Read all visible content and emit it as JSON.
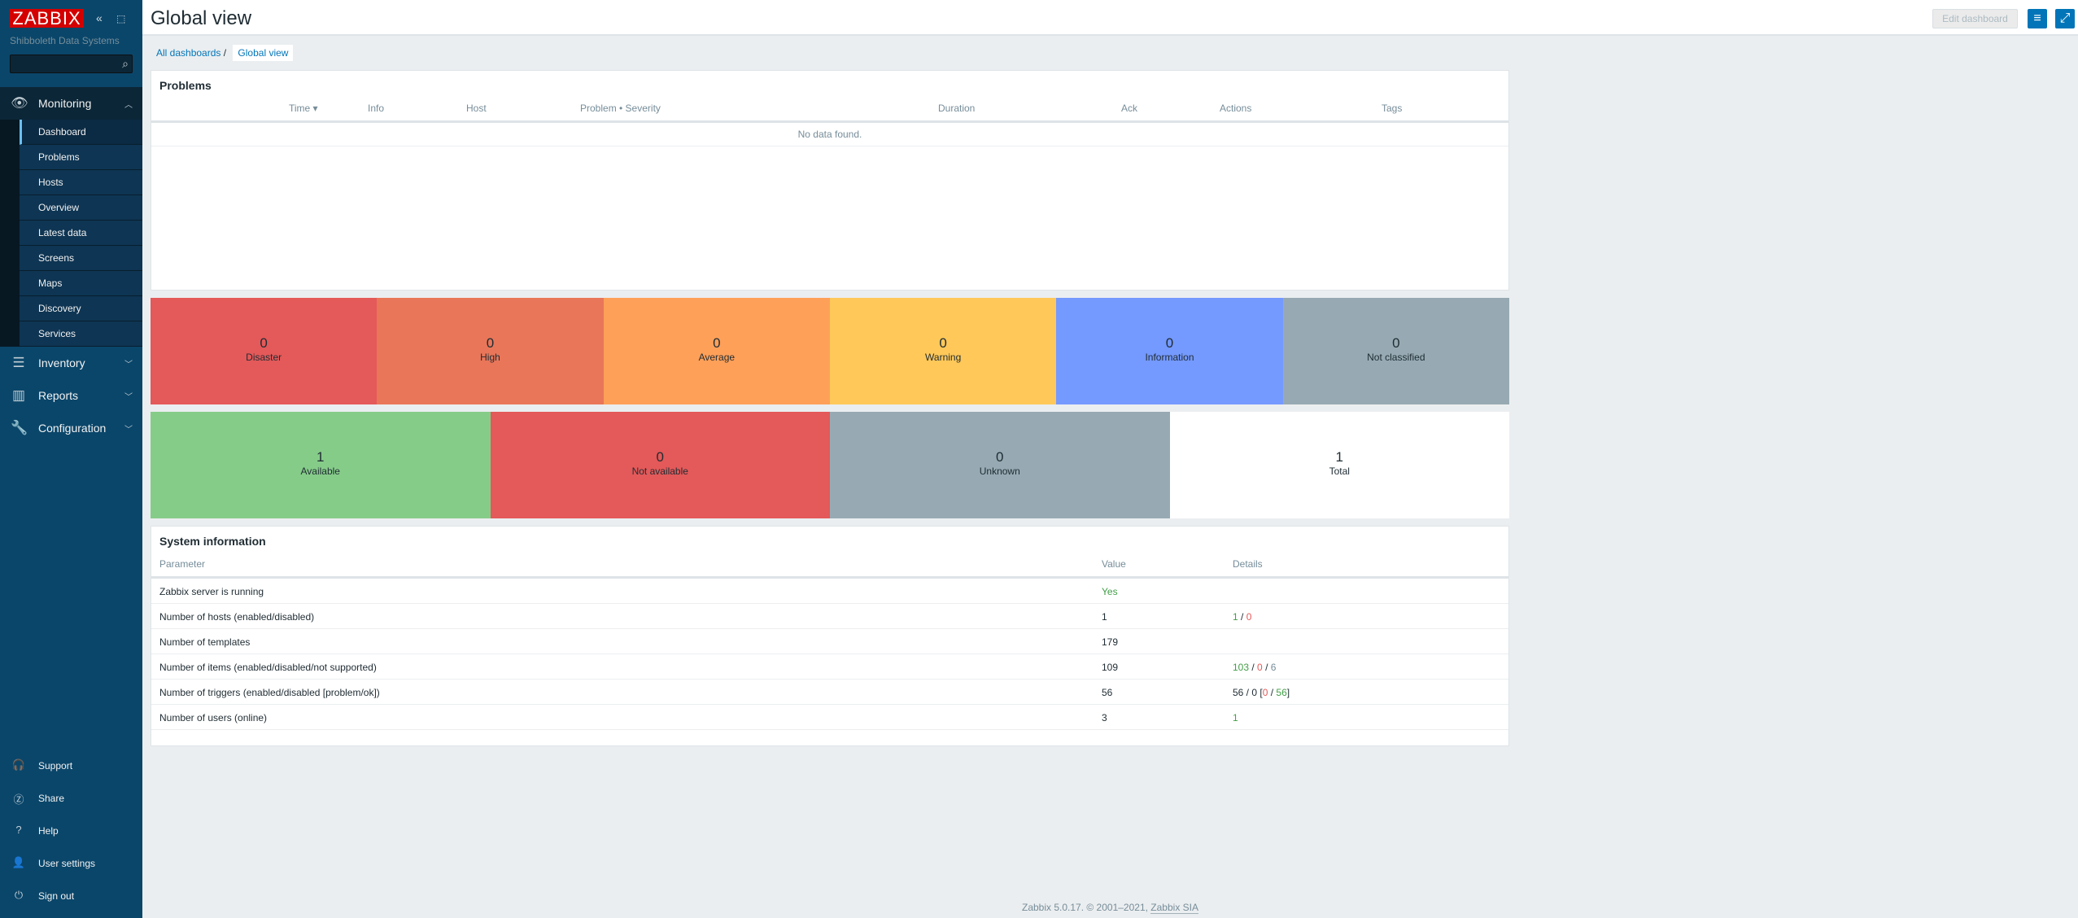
{
  "sidebar": {
    "logo": "ZABBIX",
    "subtitle": "Shibboleth Data Systems",
    "search_placeholder": "",
    "monitoring": {
      "label": "Monitoring",
      "items": [
        "Dashboard",
        "Problems",
        "Hosts",
        "Overview",
        "Latest data",
        "Screens",
        "Maps",
        "Discovery",
        "Services"
      ],
      "active": "Dashboard"
    },
    "inventory": "Inventory",
    "reports": "Reports",
    "configuration": "Configuration",
    "bottom": [
      "Support",
      "Share",
      "Help",
      "User settings",
      "Sign out"
    ]
  },
  "header": {
    "title": "Global view",
    "edit_label": "Edit dashboard"
  },
  "breadcrumb": {
    "root": "All dashboards",
    "sep": "/",
    "current": "Global view"
  },
  "problems": {
    "title": "Problems",
    "columns": [
      "Time ▾",
      "Info",
      "Host",
      "Problem • Severity",
      "Duration",
      "Ack",
      "Actions",
      "Tags"
    ],
    "empty": "No data found."
  },
  "severity": [
    {
      "count": "0",
      "label": "Disaster",
      "color": "#e45959"
    },
    {
      "count": "0",
      "label": "High",
      "color": "#e97659"
    },
    {
      "count": "0",
      "label": "Average",
      "color": "#ffa059"
    },
    {
      "count": "0",
      "label": "Warning",
      "color": "#ffc859"
    },
    {
      "count": "0",
      "label": "Information",
      "color": "#7499ff"
    },
    {
      "count": "0",
      "label": "Not classified",
      "color": "#97aab3"
    }
  ],
  "availability": [
    {
      "count": "1",
      "label": "Available",
      "color": "#86cc89"
    },
    {
      "count": "0",
      "label": "Not available",
      "color": "#e45959"
    },
    {
      "count": "0",
      "label": "Unknown",
      "color": "#97aab3"
    },
    {
      "count": "1",
      "label": "Total",
      "color": "#ffffff"
    }
  ],
  "sysinfo": {
    "title": "System information",
    "columns": [
      "Parameter",
      "Value",
      "Details"
    ],
    "rows": [
      {
        "param": "Zabbix server is running",
        "value": "Yes",
        "d": []
      },
      {
        "param": "Number of hosts (enabled/disabled)",
        "value": "1",
        "d": [
          "1",
          " / ",
          "0"
        ]
      },
      {
        "param": "Number of templates",
        "value": "179",
        "d": []
      },
      {
        "param": "Number of items (enabled/disabled/not supported)",
        "value": "109",
        "d": [
          "103",
          " / ",
          "0",
          " / ",
          "6"
        ]
      },
      {
        "param": "Number of triggers (enabled/disabled [problem/ok])",
        "value": "56",
        "d": [
          "56 / 0 [",
          "0",
          " / ",
          "56",
          "]"
        ]
      },
      {
        "param": "Number of users (online)",
        "value": "3",
        "d": [
          "1"
        ]
      }
    ]
  },
  "footer": {
    "text": "Zabbix 5.0.17. © 2001–2021, ",
    "link": "Zabbix SIA"
  }
}
